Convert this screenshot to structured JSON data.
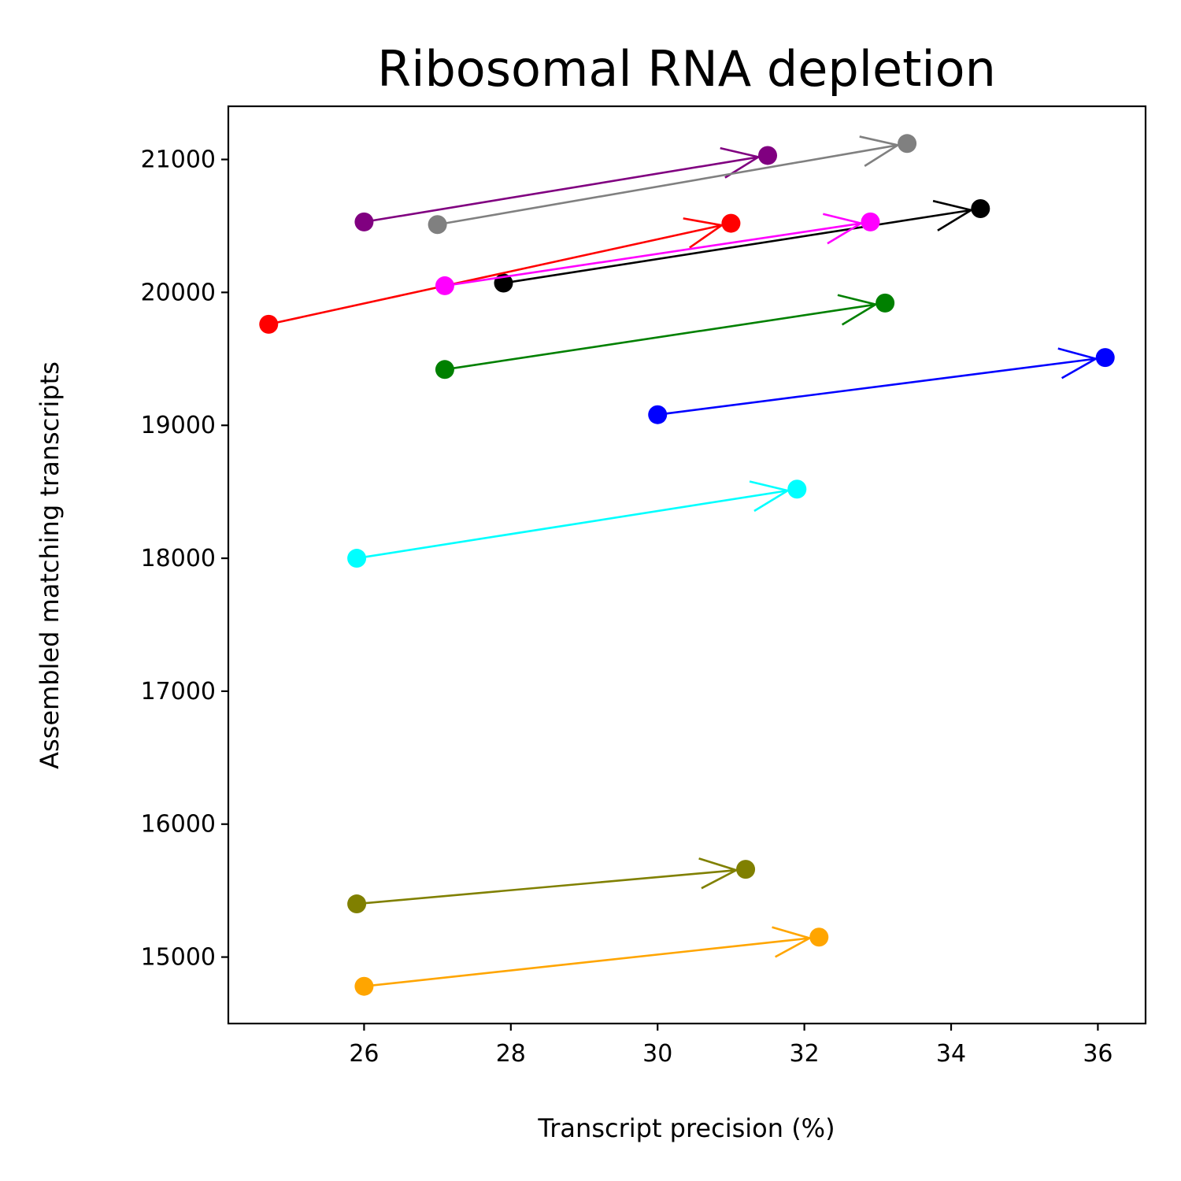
{
  "chart_data": {
    "type": "scatter",
    "title": "Ribosomal RNA depletion",
    "xlabel": "Transcript precision (%)",
    "ylabel": "Assembled matching transcripts",
    "xlim": [
      24.15,
      36.65
    ],
    "ylim": [
      14500,
      21400
    ],
    "xticks": [
      "26",
      "28",
      "30",
      "32",
      "34",
      "36"
    ],
    "yticks": [
      "15000",
      "16000",
      "17000",
      "18000",
      "19000",
      "20000",
      "21000"
    ],
    "grid": false,
    "series": [
      {
        "color": "#800080",
        "x": [
          26.0,
          31.5
        ],
        "y": [
          20530,
          21030
        ]
      },
      {
        "color": "#808080",
        "x": [
          27.0,
          33.4
        ],
        "y": [
          20510,
          21120
        ]
      },
      {
        "color": "#000000",
        "x": [
          27.9,
          34.4
        ],
        "y": [
          20070,
          20630
        ]
      },
      {
        "color": "#ff0000",
        "x": [
          24.7,
          31.0
        ],
        "y": [
          19760,
          20520
        ]
      },
      {
        "color": "#ff00ff",
        "x": [
          27.1,
          32.9
        ],
        "y": [
          20050,
          20530
        ]
      },
      {
        "color": "#008000",
        "x": [
          27.1,
          33.1
        ],
        "y": [
          19420,
          19920
        ]
      },
      {
        "color": "#0000ff",
        "x": [
          30.0,
          36.1
        ],
        "y": [
          19080,
          19510
        ]
      },
      {
        "color": "#00ffff",
        "x": [
          25.9,
          31.9
        ],
        "y": [
          18000,
          18520
        ]
      },
      {
        "color": "#808000",
        "x": [
          25.9,
          31.2
        ],
        "y": [
          15400,
          15660
        ]
      },
      {
        "color": "#ffa500",
        "x": [
          26.0,
          32.2
        ],
        "y": [
          14780,
          15150
        ]
      }
    ]
  }
}
